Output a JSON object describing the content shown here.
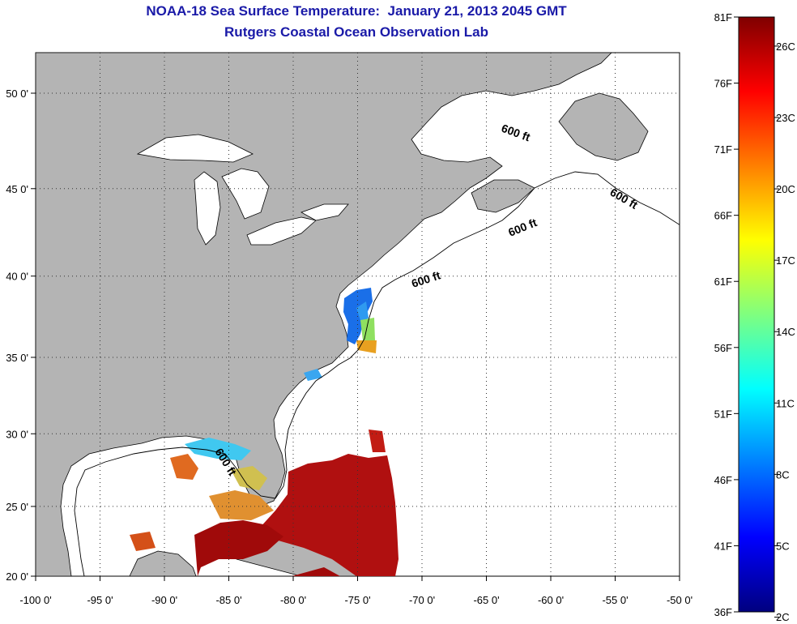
{
  "header": {
    "title": "NOAA-18 Sea Surface Temperature:  January 21, 2013 2045 GMT",
    "subtitle": "Rutgers Coastal Ocean Observation Lab"
  },
  "map": {
    "lat_ticks": [
      {
        "value": 20,
        "label": "20 0'"
      },
      {
        "value": 25,
        "label": "25 0'"
      },
      {
        "value": 30,
        "label": "30 0'"
      },
      {
        "value": 35,
        "label": "35 0'"
      },
      {
        "value": 40,
        "label": "40 0'"
      },
      {
        "value": 45,
        "label": "45 0'"
      },
      {
        "value": 50,
        "label": "50 0'"
      }
    ],
    "lon_ticks": [
      {
        "value": -100,
        "label": "-100 0'"
      },
      {
        "value": -95,
        "label": "-95 0'"
      },
      {
        "value": -90,
        "label": "-90 0'"
      },
      {
        "value": -85,
        "label": "-85 0'"
      },
      {
        "value": -80,
        "label": "-80 0'"
      },
      {
        "value": -75,
        "label": "-75 0'"
      },
      {
        "value": -70,
        "label": "-70 0'"
      },
      {
        "value": -65,
        "label": "-65 0'"
      },
      {
        "value": -60,
        "label": "-60 0'"
      },
      {
        "value": -55,
        "label": "-55 0'"
      },
      {
        "value": -50,
        "label": "-50 0'"
      }
    ],
    "isobath_label": "600 ft",
    "land_color": "#b4b4b4",
    "water_color": "#ffffff"
  },
  "colorbar": {
    "fahrenheit": [
      "81F",
      "76F",
      "71F",
      "66F",
      "61F",
      "56F",
      "51F",
      "46F",
      "41F",
      "36F"
    ],
    "celsius": [
      "26C",
      "23C",
      "20C",
      "17C",
      "14C",
      "11C",
      "8C",
      "5C",
      "2C"
    ],
    "colors": [
      "#00007f",
      "#0000ff",
      "#007fff",
      "#00ffff",
      "#7fff7f",
      "#ffff00",
      "#ff7f00",
      "#ff0000",
      "#7f0000"
    ]
  }
}
